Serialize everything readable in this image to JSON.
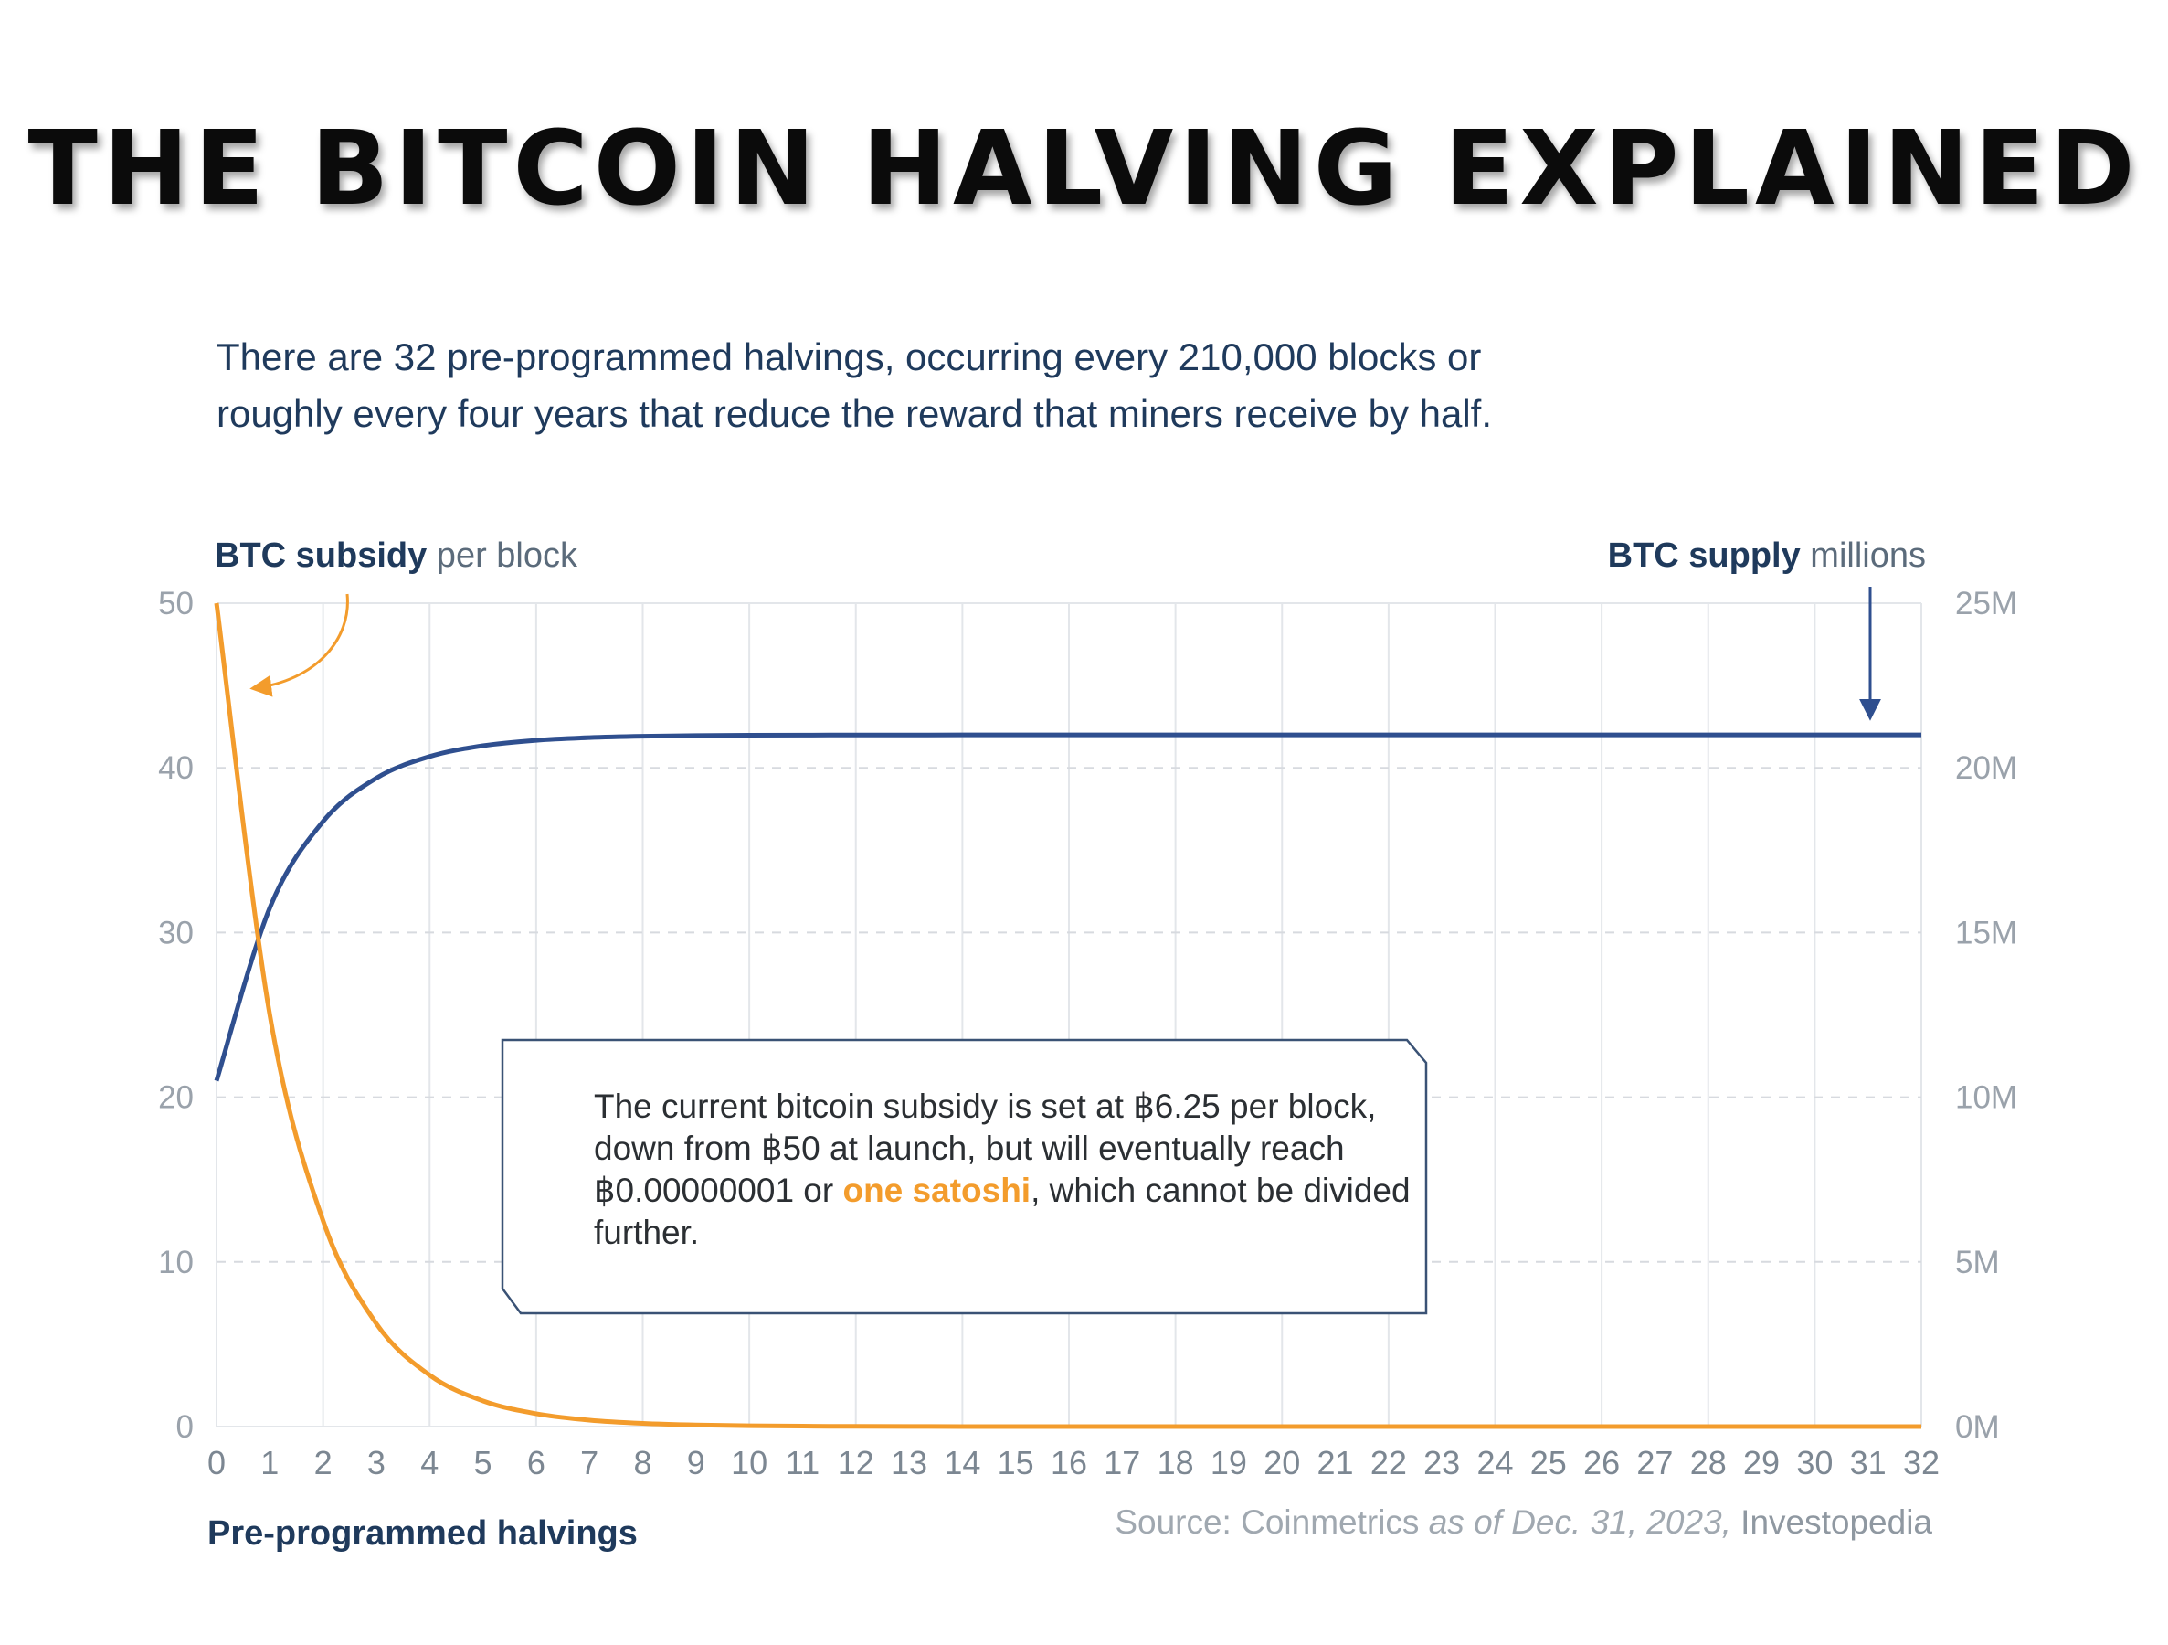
{
  "headline": "THE BITCOIN HALVING EXPLAINED",
  "subtitle_line1": "There are 32 pre-programmed halvings, occurring every 210,000 blocks or",
  "subtitle_line2": "roughly every four years that reduce the reward that miners receive by half.",
  "left_axis_title_bold": "BTC subsidy",
  "left_axis_title_rest": " per block",
  "right_axis_title_bold": "BTC supply",
  "right_axis_title_rest": " millions",
  "x_axis_title": "Pre-programmed halvings",
  "callout": {
    "part1": "The current bitcoin subsidy is set at ฿6.25 per block, down from ฿50 at launch, but will eventually reach ฿0.00000001 or ",
    "highlight": "one satoshi",
    "part2": ", which cannot be divided further."
  },
  "source": {
    "prefix": "Source: Coinmetrics ",
    "italic": "as of Dec. 31, 2023,",
    "suffix": " Investopedia"
  },
  "colors": {
    "subsidy": "#f39c2c",
    "supply": "#2f4f8f",
    "text_navy": "#1f3a5c"
  },
  "chart_data": {
    "type": "line",
    "x": [
      0,
      1,
      2,
      3,
      4,
      5,
      6,
      7,
      8,
      9,
      10,
      11,
      12,
      13,
      14,
      15,
      16,
      17,
      18,
      19,
      20,
      21,
      22,
      23,
      24,
      25,
      26,
      27,
      28,
      29,
      30,
      31,
      32
    ],
    "xlim": [
      0,
      32
    ],
    "x_tick_labels": [
      "0",
      "1",
      "2",
      "3",
      "4",
      "5",
      "6",
      "7",
      "8",
      "9",
      "10",
      "11",
      "12",
      "13",
      "14",
      "15",
      "16",
      "17",
      "18",
      "19",
      "20",
      "21",
      "22",
      "23",
      "24",
      "25",
      "26",
      "27",
      "28",
      "29",
      "30",
      "31",
      "32"
    ],
    "y_left": {
      "ylim": [
        0,
        50
      ],
      "tick_labels": [
        "0",
        "10",
        "20",
        "30",
        "40",
        "50"
      ]
    },
    "y_right": {
      "ylim": [
        0,
        25
      ],
      "tick_labels": [
        "0M",
        "5M",
        "10M",
        "15M",
        "20M",
        "25M"
      ]
    },
    "series": [
      {
        "name": "BTC subsidy",
        "axis": "left",
        "values": [
          50,
          25,
          12.5,
          6.25,
          3.125,
          1.5625,
          0.78125,
          0.390625,
          0.1953125,
          0.09765625,
          0.048828125,
          0.0244140625,
          0.01220703125,
          0.006103515625,
          0.0030517578125,
          0.00152587890625,
          0.000762939453125,
          0.0003814697265625,
          0.00019073486328125,
          9.5367431640625e-05,
          4.76837158203125e-05,
          2.384185791015625e-05,
          1.1920928955078125e-05,
          5.9604644775390625e-06,
          2.9802322387695312e-06,
          1.4901161193847656e-06,
          7.450580596923828e-07,
          3.725290298461914e-07,
          1.862645149230957e-07,
          9.313225746154785e-08,
          4.656612873077393e-08,
          2.328306436538696e-08,
          1e-08
        ]
      },
      {
        "name": "BTC supply",
        "axis": "right",
        "values": [
          10.5,
          15.75,
          18.375,
          19.6875,
          20.34375,
          20.671875,
          20.8359375,
          20.91796875,
          20.958984375,
          20.9794921875,
          20.98974609375,
          20.994873046875,
          20.9974365234375,
          20.99871826171875,
          20.999359130859375,
          20.999679565429688,
          20.999839782714844,
          20.999919891357422,
          20.99995994567871,
          20.999979972839355,
          20.999989986419678,
          20.99999499320984,
          20.99999749660492,
          20.99999874830246,
          20.99999937415123,
          20.999999687075615,
          20.999999843537807,
          20.999999921768904,
          20.99999996088445,
          20.999999980442226,
          20.999999990221113,
          20.999999995110556,
          21
        ]
      }
    ],
    "grid": true
  }
}
